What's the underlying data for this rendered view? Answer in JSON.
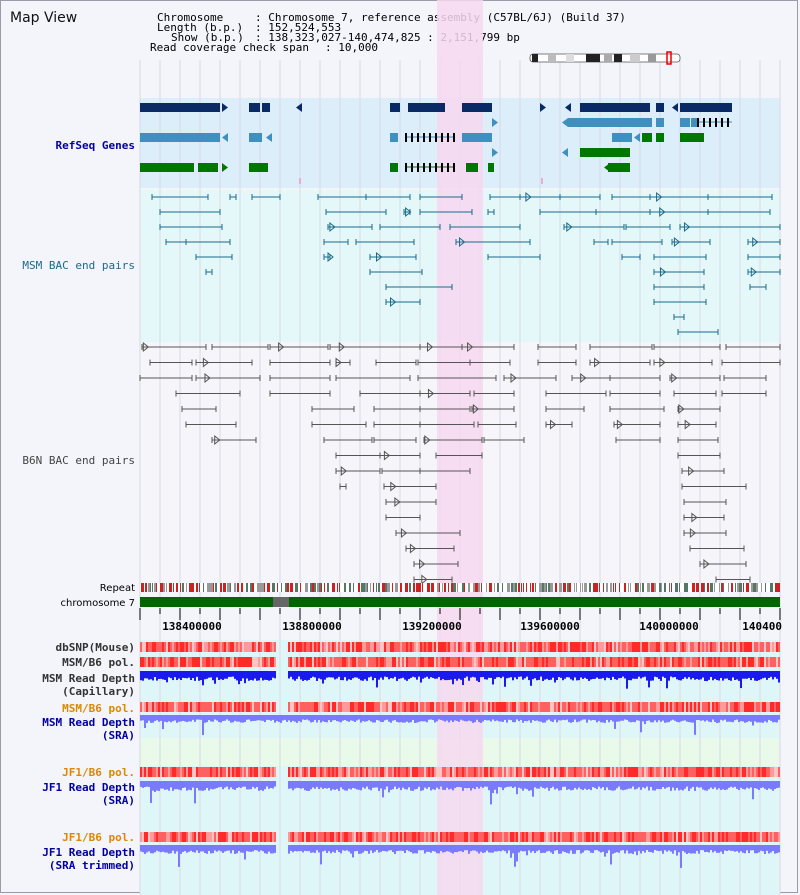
{
  "header": {
    "map_title": "Map View",
    "chromosome_label": "Chromosome",
    "chromosome_value": ": Chromosome 7, reference assembly (C57BL/6J) (Build 37)",
    "length_label": "Length (b.p.)",
    "length_value": ": 152,524,553",
    "show_label": "Show (b.p.)",
    "show_value": ": 138,323,027-140,474,825 : 2,151,799 bp",
    "coverage_label": "Read coverage check span",
    "coverage_value": ": 10,000"
  },
  "tracks": {
    "refseq": "RefSeq Genes",
    "msm_bac": "MSM BAC end pairs",
    "b6n_bac": "B6N BAC end pairs",
    "repeat": "Repeat",
    "chromosome": "chromosome 7",
    "dbsnp": "dbSNP(Mouse)",
    "msm_b6_pol_1": "MSM/B6 pol.",
    "msm_depth_cap_1": "MSM Read Depth",
    "msm_depth_cap_2": "(Capillary)",
    "msm_b6_pol_2": "MSM/B6 pol.",
    "msm_depth_sra_1": "MSM Read Depth",
    "msm_depth_sra_2": "(SRA)",
    "jf1_b6_pol_1": "JF1/B6 pol.",
    "jf1_depth_sra_1": "JF1 Read Depth",
    "jf1_depth_sra_2": "(SRA)",
    "jf1_b6_pol_2": "JF1/B6 pol.",
    "jf1_depth_trim_1": "JF1 Read Depth",
    "jf1_depth_trim_2": "(SRA trimmed)"
  },
  "ruler": {
    "ticks": [
      "138400000",
      "138800000",
      "139200000",
      "139600000",
      "140000000",
      "140400"
    ]
  },
  "colors": {
    "refseq_dark": "#0a2a66",
    "refseq_mid": "#3f8fbf",
    "refseq_green": "#007700",
    "msm_bac": "#1a6a8a",
    "b6n_bac": "#555555",
    "highlight": "#f7d8f0",
    "chromosome_band": "#006600",
    "depth_blue": "#1a1aee",
    "depth_light": "#7a7aff",
    "pol_red": "#ff4444",
    "label_navy": "#0000a0",
    "label_orange": "#dd8800",
    "label_gray": "#333333"
  }
}
